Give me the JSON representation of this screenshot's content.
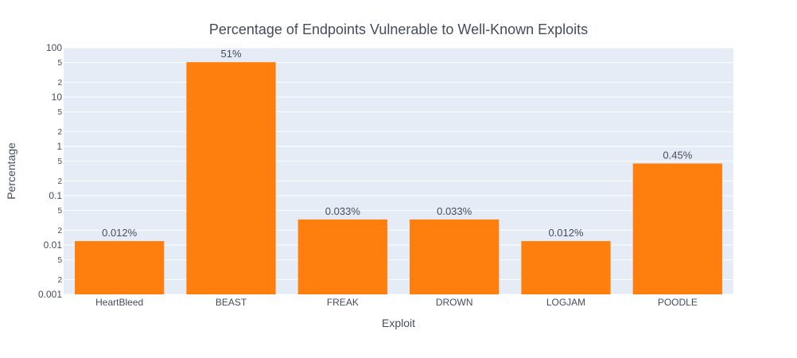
{
  "chart_data": {
    "type": "bar",
    "title": "Percentage of Endpoints Vulnerable to Well-Known Exploits",
    "xlabel": "Exploit",
    "ylabel": "Percentage",
    "y_scale": "log",
    "ylim": [
      0.001,
      100
    ],
    "grid": true,
    "categories": [
      "HeartBleed",
      "BEAST",
      "FREAK",
      "DROWN",
      "LOGJAM",
      "POODLE"
    ],
    "values": [
      0.012,
      51,
      0.033,
      0.033,
      0.012,
      0.45
    ],
    "data_labels": [
      "0.012%",
      "51%",
      "0.033%",
      "0.033%",
      "0.012%",
      "0.45%"
    ],
    "y_ticks_major": [
      "0.001",
      "0.01",
      "0.1",
      "1",
      "10",
      "100"
    ],
    "y_ticks_minor": [
      "2",
      "5"
    ],
    "colors": {
      "bar": "#ff7f0e",
      "plot_background": "#e5ecf6",
      "gridline": "#ffffff",
      "text": "#444c5e"
    }
  }
}
